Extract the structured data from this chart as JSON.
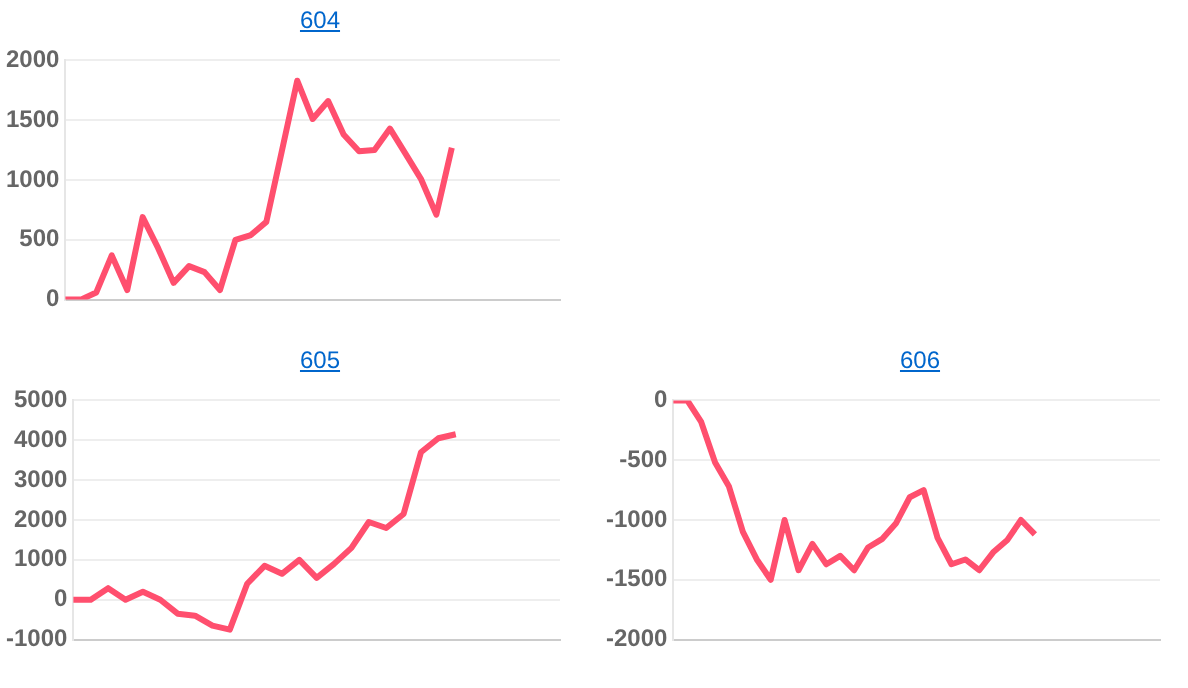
{
  "chart_data": [
    {
      "type": "line",
      "title": "604",
      "categories": [
        null,
        null,
        null,
        null,
        null,
        null,
        null,
        null,
        null,
        null,
        null,
        null,
        null,
        null,
        null,
        null,
        null,
        null,
        null,
        null,
        null,
        null,
        null,
        null,
        null,
        null,
        null,
        null,
        null,
        null,
        null,
        null,
        null
      ],
      "series": [
        {
          "color": "#ff4f6e",
          "values": [
            0,
            0,
            60,
            370,
            80,
            690,
            430,
            140,
            280,
            230,
            80,
            500,
            540,
            650,
            1240,
            1830,
            1510,
            1660,
            1380,
            1240,
            1250,
            1430,
            1220,
            1010,
            710,
            1270,
            null,
            null,
            null,
            null,
            null,
            null,
            null
          ]
        }
      ],
      "ylim": [
        0,
        2000
      ],
      "yticks": [
        0,
        500,
        1000,
        1500,
        2000
      ],
      "grid": "y",
      "marker": "none",
      "tick_labels": "y"
    },
    {
      "type": "line",
      "title": "605",
      "categories": [
        null,
        null,
        null,
        null,
        null,
        null,
        null,
        null,
        null,
        null,
        null,
        null,
        null,
        null,
        null,
        null,
        null,
        null,
        null,
        null,
        null,
        null,
        null,
        null,
        null,
        null,
        null,
        null,
        null
      ],
      "series": [
        {
          "color": "#ff4f6e",
          "values": [
            0,
            0,
            290,
            0,
            200,
            0,
            -350,
            -400,
            -650,
            -750,
            400,
            850,
            650,
            1000,
            550,
            900,
            1300,
            1950,
            1800,
            2150,
            3700,
            4050,
            4150,
            null,
            null,
            null,
            null,
            null,
            null
          ]
        }
      ],
      "ylim": [
        -1000,
        5000
      ],
      "yticks": [
        -1000,
        0,
        1000,
        2000,
        3000,
        4000,
        5000
      ],
      "grid": "y",
      "marker": "none",
      "tick_labels": "y"
    },
    {
      "type": "line",
      "title": "606",
      "categories": [
        null,
        null,
        null,
        null,
        null,
        null,
        null,
        null,
        null,
        null,
        null,
        null,
        null,
        null,
        null,
        null,
        null,
        null,
        null,
        null,
        null,
        null,
        null,
        null,
        null,
        null,
        null,
        null,
        null,
        null,
        null,
        null,
        null,
        null,
        null,
        null
      ],
      "series": [
        {
          "color": "#ff4f6e",
          "values": [
            0,
            0,
            -180,
            -520,
            -720,
            -1100,
            -1330,
            -1500,
            -1000,
            -1420,
            -1200,
            -1370,
            -1300,
            -1420,
            -1230,
            -1160,
            -1030,
            -810,
            -750,
            -1150,
            -1370,
            -1330,
            -1420,
            -1270,
            -1170,
            -1000,
            -1120,
            null,
            null,
            null,
            null,
            null,
            null,
            null,
            null,
            null
          ]
        }
      ],
      "ylim": [
        -2000,
        0
      ],
      "yticks": [
        -2000,
        -1500,
        -1000,
        -500,
        0
      ],
      "grid": "y",
      "marker": "none",
      "tick_labels": "y"
    }
  ]
}
